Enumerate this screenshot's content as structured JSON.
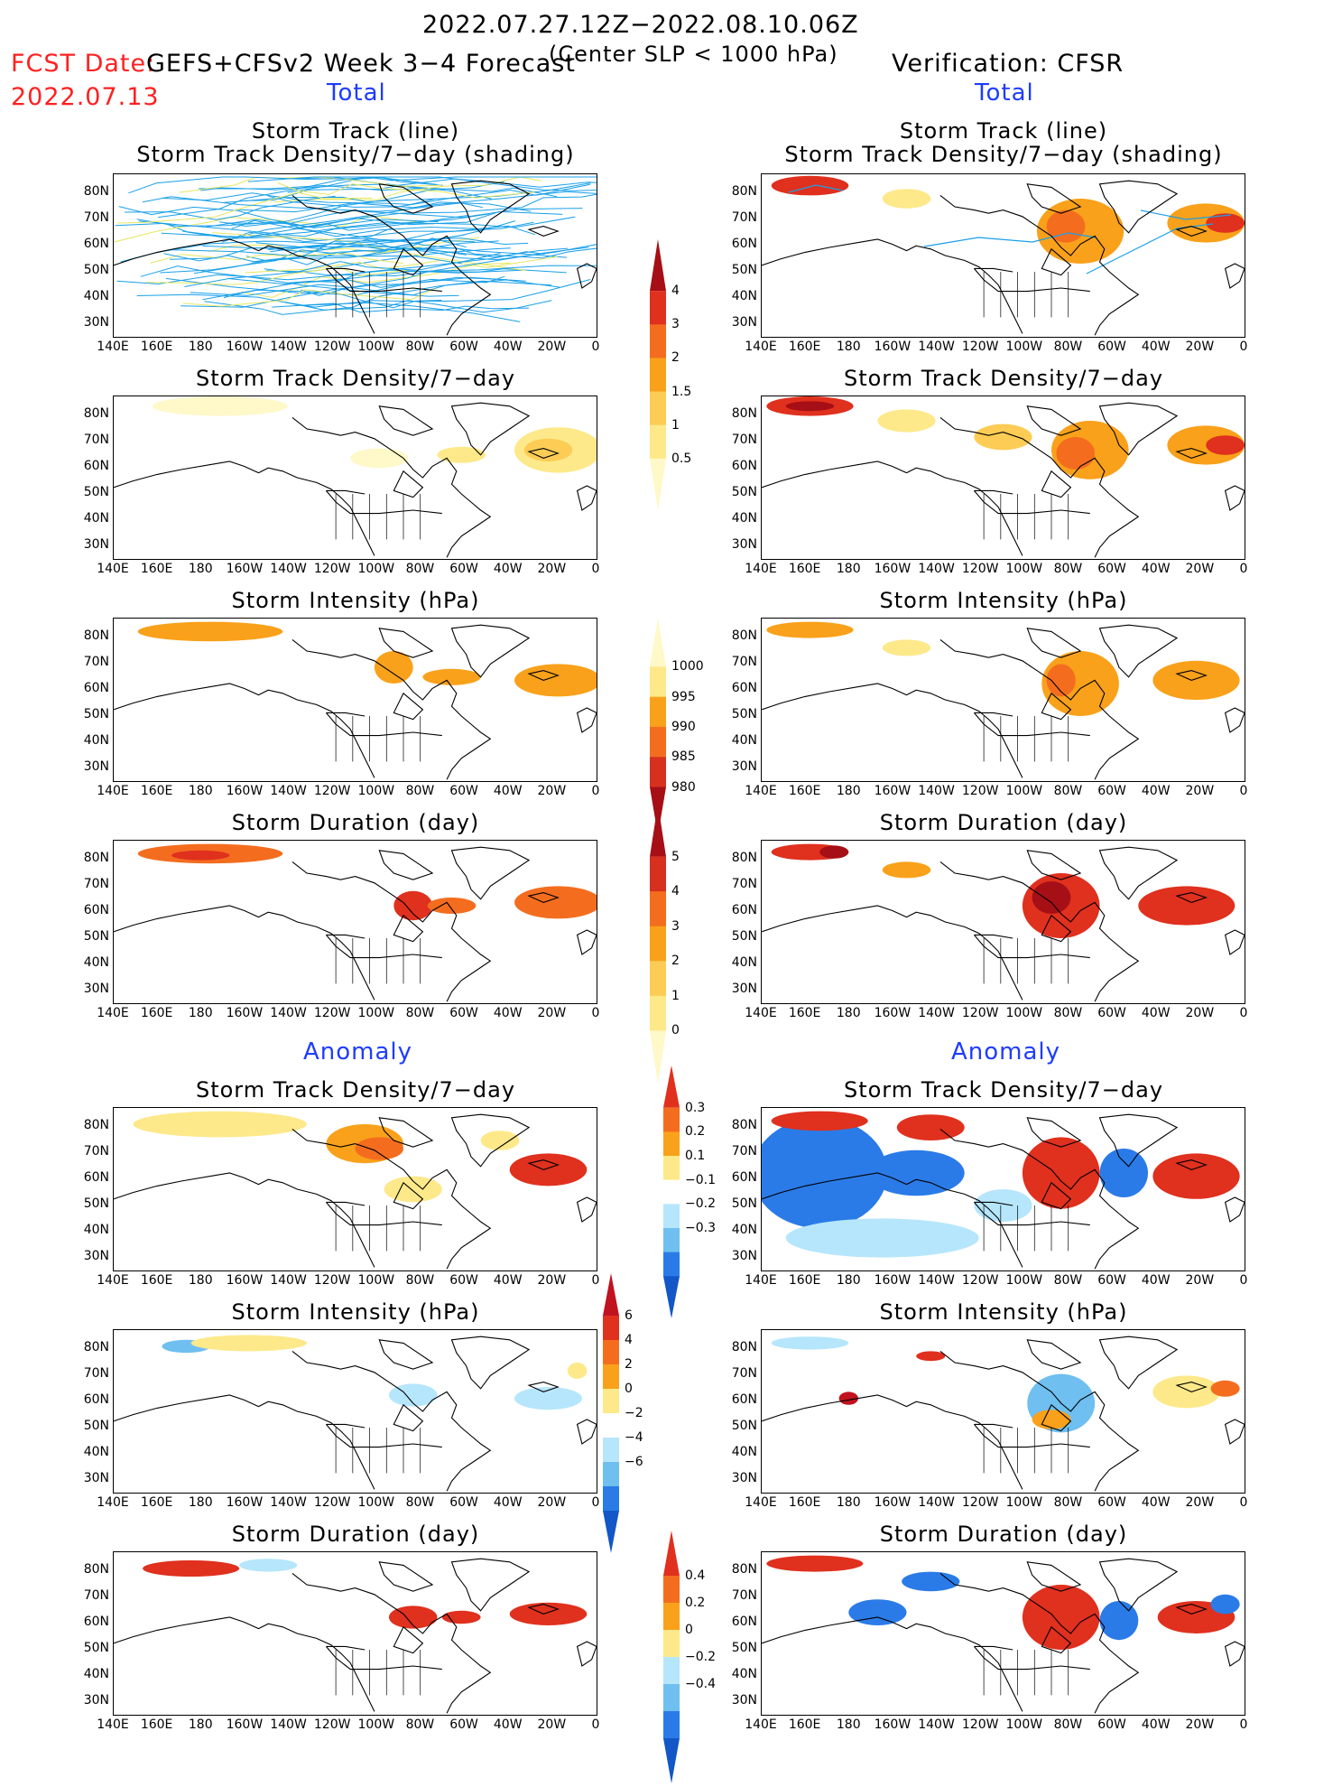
{
  "header": {
    "date_range": "2022.07.27.12Z−2022.08.10.06Z",
    "fcst_label": "FCST Date:",
    "fcst_date": "2022.07.13",
    "model": "GEFS+CFSv2 Week 3−4 Forecast",
    "criterion": "(Center SLP < 1000 hPa)",
    "verification": "Verification: CFSR"
  },
  "sections": {
    "left_total": "Total",
    "right_total": "Total",
    "left_anom": "Anomaly",
    "right_anom": "Anomaly"
  },
  "panel_titles": {
    "track_line": "Storm Track (line)",
    "track_shading": "Storm Track Density/7−day (shading)",
    "density": "Storm Track Density/7−day",
    "intensity": "Storm Intensity (hPa)",
    "duration": "Storm Duration (day)"
  },
  "axes": {
    "lat_labels": [
      "80N",
      "70N",
      "60N",
      "50N",
      "40N",
      "30N"
    ],
    "lon_labels": [
      "140E",
      "160E",
      "180",
      "160W",
      "140W",
      "120W",
      "100W",
      "80W",
      "60W",
      "40W",
      "20W",
      "0"
    ]
  },
  "colorbars": {
    "density_total": {
      "ticks": [
        "4",
        "3",
        "2",
        "1.5",
        "1",
        "0.5"
      ],
      "colors": [
        "#a50f15",
        "#e0301e",
        "#f46d1f",
        "#f9a11a",
        "#fccc55",
        "#fde98a",
        "#fff8c8"
      ]
    },
    "intensity_total": {
      "ticks": [
        "1000",
        "995",
        "990",
        "985",
        "980"
      ],
      "colors": [
        "#fff8c8",
        "#fde98a",
        "#f9a11a",
        "#f46d1f",
        "#d7301f",
        "#a50f15"
      ]
    },
    "duration_total": {
      "ticks": [
        "5",
        "4",
        "3",
        "2",
        "1",
        "0"
      ],
      "colors": [
        "#a50f15",
        "#d7301f",
        "#f46d1f",
        "#f9a11a",
        "#fccc55",
        "#fde98a",
        "#fff8c8"
      ]
    },
    "density_anom": {
      "ticks": [
        "0.3",
        "0.2",
        "0.1",
        "−0.1",
        "−0.2",
        "−0.3"
      ],
      "colors": [
        "#e0301e",
        "#f46d1f",
        "#f9a11a",
        "#fde98a",
        "#ffffff",
        "#b6e6fb",
        "#6fbff0",
        "#2a7be8",
        "#1256c8"
      ]
    },
    "intensity_anom": {
      "ticks": [
        "6",
        "4",
        "2",
        "0",
        "−2",
        "−4",
        "−6"
      ],
      "colors": [
        "#c1121f",
        "#e0301e",
        "#f46d1f",
        "#f9a11a",
        "#fde98a",
        "#ffffff",
        "#b6e6fb",
        "#6fbff0",
        "#2a7be8",
        "#1256c8"
      ]
    },
    "duration_anom": {
      "ticks": [
        "0.4",
        "0.2",
        "0",
        "−0.2",
        "−0.4"
      ],
      "colors": [
        "#e0301e",
        "#f46d1f",
        "#f9a11a",
        "#fde98a",
        "#b6e6fb",
        "#6fbff0",
        "#2a7be8",
        "#1256c8"
      ]
    }
  },
  "colors": {
    "track_line": "#1aa0e8",
    "track_line_alt": "#e6e660",
    "coast": "#000000"
  }
}
